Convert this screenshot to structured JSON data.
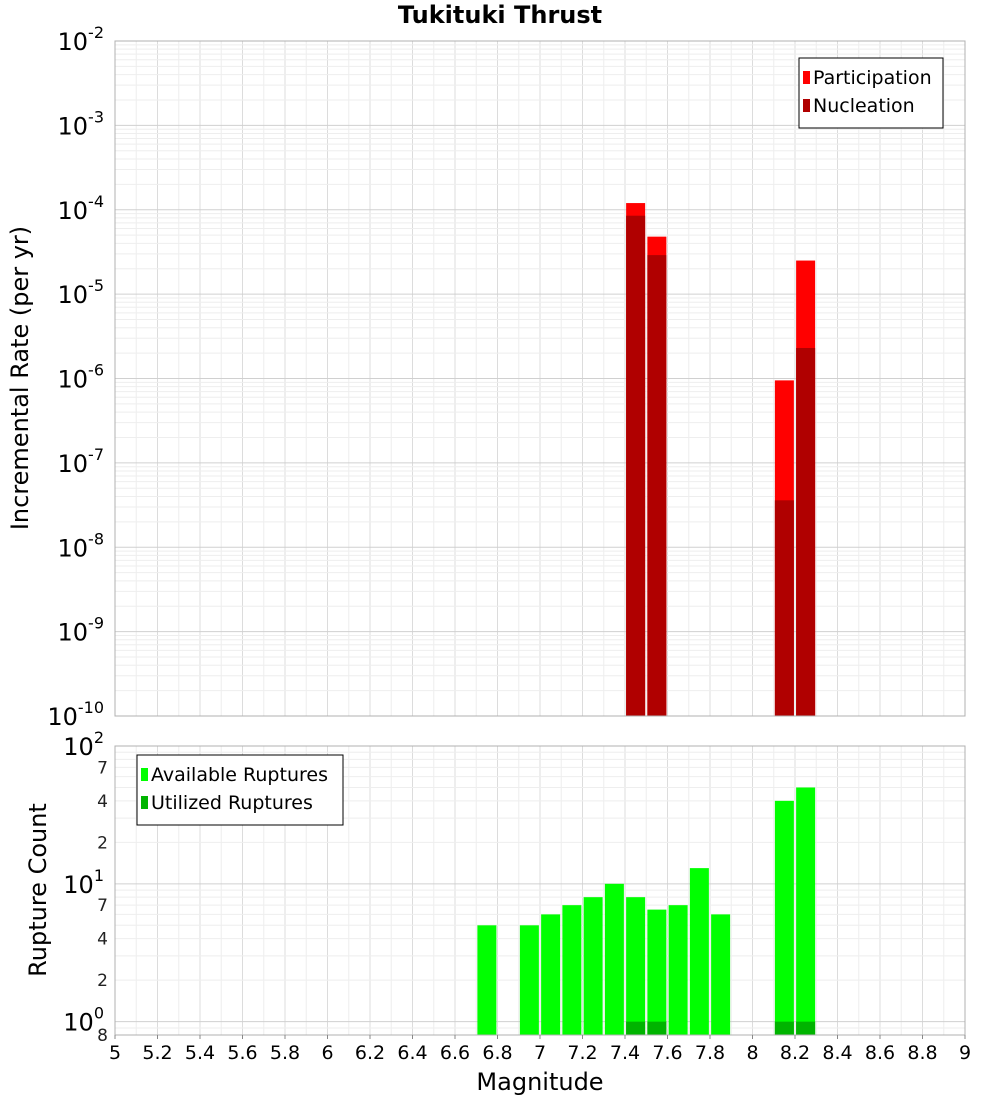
{
  "chart_data": [
    {
      "type": "bar",
      "title": "Tukituki Thrust",
      "ylabel": "Incremental Rate (per yr)",
      "xlabel": "",
      "yscale": "log",
      "xlim": [
        5,
        9
      ],
      "ylim": [
        1e-10,
        0.01
      ],
      "grid": true,
      "legend_position": "top-right",
      "y_tick_labels": [
        {
          "value": 0.01,
          "base": "10",
          "exp": "-2"
        },
        {
          "value": 0.001,
          "base": "10",
          "exp": "-3"
        },
        {
          "value": 0.0001,
          "base": "10",
          "exp": "-4"
        },
        {
          "value": 1e-05,
          "base": "10",
          "exp": "-5"
        },
        {
          "value": 1e-06,
          "base": "10",
          "exp": "-6"
        },
        {
          "value": 1e-07,
          "base": "10",
          "exp": "-7"
        },
        {
          "value": 1e-08,
          "base": "10",
          "exp": "-8"
        },
        {
          "value": 1e-09,
          "base": "10",
          "exp": "-9"
        },
        {
          "value": 1e-10,
          "base": "10",
          "exp": "-10"
        }
      ],
      "x": [
        7.45,
        7.55,
        8.15,
        8.25
      ],
      "series": [
        {
          "name": "Participation",
          "color": "#ff0000",
          "values": [
            0.00012,
            4.8e-05,
            9.5e-07,
            2.5e-05
          ]
        },
        {
          "name": "Nucleation",
          "color": "#b00000",
          "values": [
            8.5e-05,
            2.9e-05,
            3.6e-08,
            2.3e-06
          ]
        }
      ]
    },
    {
      "type": "bar",
      "title": "",
      "ylabel": "Rupture Count",
      "xlabel": "Magnitude",
      "yscale": "log",
      "xlim": [
        5,
        9
      ],
      "ylim": [
        0.8,
        100
      ],
      "grid": true,
      "legend_position": "top-left",
      "x_tick_labels": [
        "5",
        "5.2",
        "5.4",
        "5.6",
        "5.8",
        "6",
        "6.2",
        "6.4",
        "6.6",
        "6.8",
        "7",
        "7.2",
        "7.4",
        "7.6",
        "7.8",
        "8",
        "8.2",
        "8.4",
        "8.6",
        "8.8",
        "9"
      ],
      "y_major_tick_labels": [
        {
          "value": 100,
          "base": "10",
          "exp": "2"
        },
        {
          "value": 10,
          "base": "10",
          "exp": "1"
        },
        {
          "value": 1,
          "base": "10",
          "exp": "0"
        }
      ],
      "y_minor_tick_labels": [
        {
          "value": 70,
          "label": "7"
        },
        {
          "value": 40,
          "label": "4"
        },
        {
          "value": 20,
          "label": "2"
        },
        {
          "value": 7,
          "label": "7"
        },
        {
          "value": 4,
          "label": "4"
        },
        {
          "value": 2,
          "label": "2"
        },
        {
          "value": 0.8,
          "label": "8"
        }
      ],
      "x": [
        6.75,
        6.95,
        7.05,
        7.15,
        7.25,
        7.35,
        7.45,
        7.55,
        7.65,
        7.75,
        7.85,
        8.15,
        8.25
      ],
      "series": [
        {
          "name": "Available Ruptures",
          "color": "#00ff00",
          "values": [
            5,
            5,
            6,
            7,
            8,
            10,
            8,
            6.5,
            7,
            13,
            6,
            40,
            50
          ]
        },
        {
          "name": "Utilized Ruptures",
          "color": "#00b400",
          "values": [
            0,
            0,
            0,
            0,
            0,
            0,
            1,
            1,
            0,
            0,
            0,
            1,
            1
          ]
        }
      ]
    }
  ]
}
